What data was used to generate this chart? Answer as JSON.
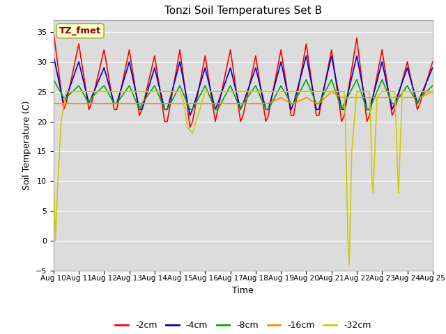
{
  "title": "Tonzi Soil Temperatures Set B",
  "xlabel": "Time",
  "ylabel": "Soil Temperature (C)",
  "xlim": [
    0,
    15
  ],
  "ylim": [
    -5,
    37
  ],
  "yticks": [
    -5,
    0,
    5,
    10,
    15,
    20,
    25,
    30,
    35
  ],
  "xtick_labels": [
    "Aug 10",
    "Aug 11",
    "Aug 12",
    "Aug 13",
    "Aug 14",
    "Aug 15",
    "Aug 16",
    "Aug 17",
    "Aug 18",
    "Aug 19",
    "Aug 20",
    "Aug 21",
    "Aug 22",
    "Aug 23",
    "Aug 24",
    "Aug 25"
  ],
  "bg_color": "#dcdcdc",
  "fig_color": "#ffffff",
  "annotation_text": "TZ_fmet",
  "annotation_color": "#8b0000",
  "annotation_bg": "#ffffcc",
  "series_colors": [
    "#ff0000",
    "#0000cd",
    "#00aa00",
    "#ff8c00",
    "#cccc00"
  ],
  "series_labels": [
    "-2cm",
    "-4cm",
    "-8cm",
    "-16cm",
    "-32cm"
  ],
  "line_width": 1.2,
  "x_2cm": [
    0,
    0.4,
    0.5,
    1.0,
    1.4,
    1.5,
    2.0,
    2.4,
    2.5,
    3.0,
    3.4,
    3.5,
    4.0,
    4.4,
    4.5,
    5.0,
    5.4,
    5.5,
    6.0,
    6.4,
    6.5,
    7.0,
    7.4,
    7.5,
    8.0,
    8.4,
    8.5,
    9.0,
    9.4,
    9.5,
    10.0,
    10.4,
    10.5,
    11.0,
    11.4,
    11.5,
    12.0,
    12.4,
    12.5,
    13.0,
    13.4,
    13.5,
    14.0,
    14.4,
    14.5,
    15.0
  ],
  "y_2cm": [
    35,
    22,
    23,
    33,
    22,
    23,
    32,
    22,
    22,
    32,
    21,
    22,
    31,
    20,
    20,
    32,
    19,
    20,
    31,
    20,
    22,
    32,
    20,
    21,
    31,
    20,
    21,
    32,
    21,
    21,
    33,
    21,
    21,
    32,
    20,
    21,
    34,
    20,
    21,
    32,
    21,
    22,
    30,
    22,
    23,
    30
  ],
  "x_4cm": [
    0,
    0.4,
    0.5,
    1.0,
    1.4,
    1.5,
    2.0,
    2.4,
    2.5,
    3.0,
    3.4,
    3.5,
    4.0,
    4.4,
    4.5,
    5.0,
    5.4,
    5.5,
    6.0,
    6.4,
    6.5,
    7.0,
    7.4,
    7.5,
    8.0,
    8.4,
    8.5,
    9.0,
    9.4,
    9.5,
    10.0,
    10.4,
    10.5,
    11.0,
    11.4,
    11.5,
    12.0,
    12.4,
    12.5,
    13.0,
    13.4,
    13.5,
    14.0,
    14.4,
    14.5,
    15.0
  ],
  "y_4cm": [
    31,
    23,
    24,
    30,
    23,
    24,
    29,
    23,
    23,
    30,
    22,
    22,
    29,
    22,
    22,
    30,
    21,
    22,
    29,
    22,
    23,
    29,
    22,
    23,
    29,
    22,
    22,
    30,
    22,
    23,
    31,
    22,
    22,
    31,
    22,
    22,
    31,
    22,
    22,
    30,
    22,
    23,
    29,
    23,
    24,
    29
  ],
  "x_8cm": [
    0,
    0.4,
    0.5,
    1.0,
    1.4,
    1.5,
    2.0,
    2.4,
    2.5,
    3.0,
    3.4,
    3.5,
    4.0,
    4.4,
    4.5,
    5.0,
    5.4,
    5.5,
    6.0,
    6.4,
    6.5,
    7.0,
    7.4,
    7.5,
    8.0,
    8.4,
    8.5,
    9.0,
    9.4,
    9.5,
    10.0,
    10.4,
    10.5,
    11.0,
    11.4,
    11.5,
    12.0,
    12.4,
    12.5,
    13.0,
    13.4,
    13.5,
    14.0,
    14.4,
    14.5,
    15.0
  ],
  "y_8cm": [
    27,
    24,
    24,
    26,
    23,
    24,
    26,
    23,
    23,
    26,
    22,
    23,
    26,
    22,
    22,
    26,
    22,
    22,
    26,
    22,
    22,
    26,
    22,
    23,
    26,
    22,
    22,
    26,
    23,
    23,
    27,
    23,
    23,
    27,
    22,
    23,
    27,
    22,
    22,
    27,
    23,
    23,
    26,
    23,
    24,
    26
  ],
  "x_16cm": [
    0,
    0.4,
    0.5,
    1.0,
    1.4,
    1.5,
    2.0,
    2.4,
    2.5,
    3.0,
    3.4,
    3.5,
    4.0,
    4.4,
    4.5,
    5.0,
    5.4,
    5.5,
    6.0,
    6.4,
    6.5,
    7.0,
    7.4,
    7.5,
    8.0,
    8.4,
    8.5,
    9.0,
    9.4,
    9.5,
    10.0,
    10.4,
    10.5,
    11.0,
    11.4,
    11.5,
    12.0,
    12.4,
    12.5,
    13.0,
    13.4,
    13.5,
    14.0,
    14.4,
    14.5,
    15.0
  ],
  "y_16cm": [
    23,
    23,
    23,
    23,
    23,
    23,
    23,
    23,
    23,
    23,
    23,
    23,
    23,
    23,
    23,
    23,
    23,
    23,
    23,
    23,
    23,
    23,
    23,
    23,
    23,
    23,
    23,
    24,
    23,
    23,
    24,
    23,
    23,
    25,
    24,
    24,
    24,
    24,
    24,
    24,
    24,
    24,
    24,
    24,
    24,
    25
  ],
  "x_32cm": [
    0,
    0.08,
    0.15,
    0.3,
    0.5,
    1.0,
    1.5,
    2.0,
    2.5,
    3.0,
    3.5,
    4.0,
    4.5,
    5.0,
    5.1,
    5.2,
    5.3,
    5.5,
    6.0,
    6.5,
    7.0,
    7.5,
    8.0,
    8.5,
    9.0,
    9.5,
    10.0,
    10.5,
    11.0,
    11.5,
    11.55,
    11.6,
    11.65,
    11.7,
    11.8,
    12.0,
    12.5,
    12.55,
    12.6,
    12.65,
    12.7,
    12.8,
    13.0,
    13.5,
    13.55,
    13.6,
    13.65,
    13.7,
    13.8,
    14.0,
    14.5,
    15.0
  ],
  "y_32cm": [
    11,
    0,
    8,
    20,
    25,
    25,
    25,
    25,
    25,
    25,
    25,
    25,
    25,
    25,
    24,
    22,
    19,
    18,
    25,
    25,
    25,
    25,
    25,
    25,
    25,
    25,
    25,
    25,
    25,
    25,
    20,
    10,
    0,
    -4,
    15,
    25,
    25,
    20,
    10,
    8,
    14,
    24,
    25,
    25,
    20,
    13,
    8,
    14,
    25,
    25,
    25,
    25
  ]
}
